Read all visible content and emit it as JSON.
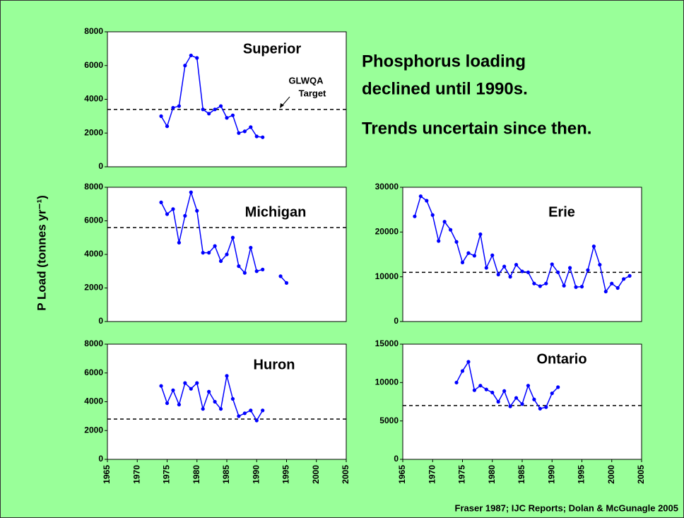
{
  "headline": [
    "Phosphorus loading",
    "declined until 1990s.",
    "Trends uncertain since then."
  ],
  "y_axis_label": "P Load (tonnes yr⁻¹)",
  "source": "Fraser 1987; IJC Reports; Dolan & McGunagle 2005",
  "chart_data": [
    {
      "type": "line",
      "title": "Superior",
      "color": "#0000ff",
      "annotation": [
        "GLWQA",
        "Target"
      ],
      "x": [
        1974,
        1975,
        1976,
        1977,
        1978,
        1979,
        1980,
        1981,
        1982,
        1983,
        1984,
        1985,
        1986,
        1987,
        1988,
        1989,
        1990,
        1991
      ],
      "values": [
        3000,
        2400,
        3500,
        3600,
        6000,
        6600,
        6450,
        3400,
        3150,
        3400,
        3600,
        2900,
        3050,
        2000,
        2100,
        2350,
        1800,
        1750
      ],
      "target": 3400,
      "xlim": [
        1965,
        2005
      ],
      "ylim": [
        0,
        8000
      ],
      "yticks": [
        0,
        2000,
        4000,
        6000,
        8000
      ]
    },
    {
      "type": "line",
      "title": "Michigan",
      "color": "#0000ff",
      "x": [
        1974,
        1975,
        1976,
        1977,
        1978,
        1979,
        1980,
        1981,
        1982,
        1983,
        1984,
        1985,
        1986,
        1987,
        1988,
        1989,
        1990,
        1991,
        1992,
        1993,
        1994,
        1995
      ],
      "values": [
        7100,
        6400,
        6700,
        4700,
        6300,
        7700,
        6600,
        4100,
        4100,
        4500,
        3600,
        4000,
        5000,
        3300,
        2900,
        4400,
        3000,
        3100,
        null,
        null,
        2700,
        2300
      ],
      "target": 5600,
      "xlim": [
        1965,
        2005
      ],
      "ylim": [
        0,
        8000
      ],
      "yticks": [
        0,
        2000,
        4000,
        6000,
        8000
      ]
    },
    {
      "type": "line",
      "title": "Huron",
      "color": "#0000ff",
      "x": [
        1974,
        1975,
        1976,
        1977,
        1978,
        1979,
        1980,
        1981,
        1982,
        1983,
        1984,
        1985,
        1986,
        1987,
        1988,
        1989,
        1990,
        1991
      ],
      "values": [
        5100,
        3900,
        4800,
        3800,
        5300,
        4900,
        5300,
        3500,
        4700,
        4000,
        3500,
        5800,
        4200,
        3000,
        3200,
        3400,
        2700,
        3400
      ],
      "target": 2800,
      "xlim": [
        1965,
        2005
      ],
      "ylim": [
        0,
        8000
      ],
      "yticks": [
        0,
        2000,
        4000,
        6000,
        8000
      ],
      "xticks": [
        1965,
        1970,
        1975,
        1980,
        1985,
        1990,
        1995,
        2000,
        2005
      ]
    },
    {
      "type": "line",
      "title": "Erie",
      "color": "#0000ff",
      "x": [
        1967,
        1968,
        1969,
        1970,
        1971,
        1972,
        1973,
        1974,
        1975,
        1976,
        1977,
        1978,
        1979,
        1980,
        1981,
        1982,
        1983,
        1984,
        1985,
        1986,
        1987,
        1988,
        1989,
        1990,
        1991,
        1992,
        1993,
        1994,
        1995,
        1996,
        1997,
        1998,
        1999,
        2000,
        2001,
        2002,
        2003
      ],
      "values": [
        23500,
        28000,
        27000,
        23800,
        18000,
        22300,
        20500,
        17800,
        13200,
        15300,
        14700,
        19500,
        12000,
        14800,
        10500,
        12300,
        10000,
        12700,
        11200,
        11000,
        8500,
        7900,
        8500,
        12800,
        11000,
        8000,
        12000,
        7700,
        7800,
        11500,
        16800,
        12700,
        6700,
        8500,
        7500,
        9500,
        10200
      ],
      "target": 11000,
      "xlim": [
        1965,
        2005
      ],
      "ylim": [
        0,
        30000
      ],
      "yticks": [
        0,
        10000,
        20000,
        30000
      ]
    },
    {
      "type": "line",
      "title": "Ontario",
      "color": "#0000ff",
      "x": [
        1974,
        1975,
        1976,
        1977,
        1978,
        1979,
        1980,
        1981,
        1982,
        1983,
        1984,
        1985,
        1986,
        1987,
        1988,
        1989,
        1990,
        1991
      ],
      "values": [
        10000,
        11500,
        12700,
        9000,
        9600,
        9100,
        8700,
        7500,
        8900,
        6900,
        8000,
        7200,
        9600,
        7800,
        6600,
        6800,
        8600,
        9400
      ],
      "target": 7000,
      "xlim": [
        1965,
        2005
      ],
      "ylim": [
        0,
        15000
      ],
      "yticks": [
        0,
        5000,
        10000,
        15000
      ],
      "xticks": [
        1965,
        1970,
        1975,
        1980,
        1985,
        1990,
        1995,
        2000,
        2005
      ]
    }
  ]
}
